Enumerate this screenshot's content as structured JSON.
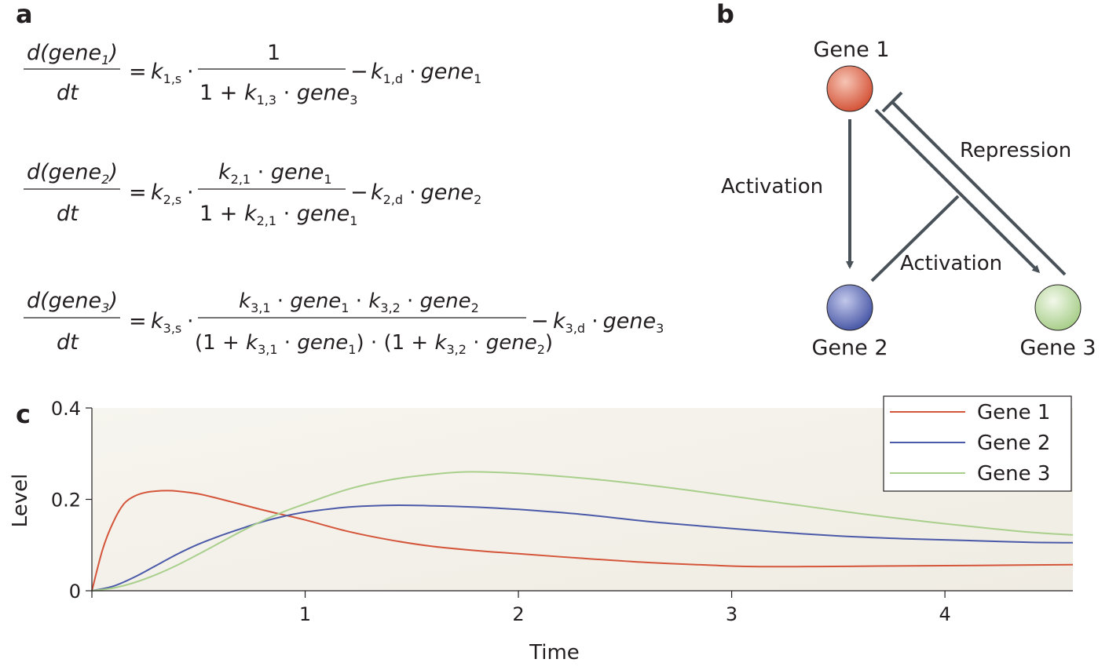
{
  "panels": {
    "a": "a",
    "b": "b",
    "c": "c"
  },
  "equations": [
    {
      "lhs_num": "d(gene",
      "lhs_sub": "1",
      "lhs_close": ")",
      "lhs_den": "dt",
      "eq": "=",
      "k_prod": "k",
      "k_prod_sub": "1,s",
      "dot": "·",
      "frac_num": "1",
      "frac_den_1": "1 + ",
      "frac_den_k": "k",
      "frac_den_k_sub": "1,3",
      "frac_den_dot": " · ",
      "frac_den_g": "gene",
      "frac_den_g_sub": "3",
      "minus": "−",
      "k_deg": "k",
      "k_deg_sub": "1,d",
      "tail_dot": "·",
      "tail_g": "gene",
      "tail_g_sub": "1"
    },
    {
      "lhs_num": "d(gene",
      "lhs_sub": "2",
      "lhs_close": ")",
      "lhs_den": "dt",
      "eq": "=",
      "k_prod": "k",
      "k_prod_sub": "2,s",
      "dot": "·",
      "frac_num_k": "k",
      "frac_num_k_sub": "2,1",
      "frac_num_dot": " · ",
      "frac_num_g": "gene",
      "frac_num_g_sub": "1",
      "frac_den_1": "1 + ",
      "frac_den_k": "k",
      "frac_den_k_sub": "2,1",
      "frac_den_dot": " · ",
      "frac_den_g": "gene",
      "frac_den_g_sub": "1",
      "minus": "−",
      "k_deg": "k",
      "k_deg_sub": "2,d",
      "tail_dot": "·",
      "tail_g": "gene",
      "tail_g_sub": "2"
    },
    {
      "lhs_num": "d(gene",
      "lhs_sub": "3",
      "lhs_close": ")",
      "lhs_den": "dt",
      "eq": "=",
      "k_prod": "k",
      "k_prod_sub": "3,s",
      "dot": "·",
      "num_k1": "k",
      "num_k1_sub": "3,1",
      "num_d1": " · ",
      "num_g1": "gene",
      "num_g1_sub": "1",
      "num_d2": " · ",
      "num_k2": "k",
      "num_k2_sub": "3,2",
      "num_d3": " · ",
      "num_g2": "gene",
      "num_g2_sub": "2",
      "den_o1": "(1 + ",
      "den_k1": "k",
      "den_k1_sub": "3,1",
      "den_d1": " · ",
      "den_g1": "gene",
      "den_g1_sub": "1",
      "den_c1": ")",
      "den_mid": " · ",
      "den_o2": "(1 + ",
      "den_k2": "k",
      "den_k2_sub": "3,2",
      "den_d2": " · ",
      "den_g2": "gene",
      "den_g2_sub": "2",
      "den_c2": ")",
      "minus": "−",
      "k_deg": "k",
      "k_deg_sub": "3,d",
      "tail_dot": "·",
      "tail_g": "gene",
      "tail_g_sub": "3"
    }
  ],
  "network": {
    "nodes": [
      {
        "label": "Gene 1",
        "color": "#d4553a"
      },
      {
        "label": "Gene 2",
        "color": "#4b5aa8"
      },
      {
        "label": "Gene 3",
        "color": "#a9cf8c"
      }
    ],
    "edge_color": "#4a5259",
    "labels": {
      "activation_1": "Activation",
      "activation_2": "Activation",
      "repression": "Repression"
    }
  },
  "chart_data": {
    "type": "line",
    "xlabel": "Time",
    "ylabel": "Level",
    "xlim": [
      0,
      4.6
    ],
    "ylim": [
      0,
      0.4
    ],
    "xticks": [
      1,
      2,
      3,
      4
    ],
    "xtick_labels": [
      "1",
      "2",
      "3",
      "4"
    ],
    "yticks": [
      0,
      0.2,
      0.4
    ],
    "ytick_labels": [
      "0",
      "0.2",
      "0.4"
    ],
    "legend_position": "top-right",
    "grid": false,
    "series": [
      {
        "name": "Gene 1",
        "color": "#d4553a",
        "x": [
          0,
          0.05,
          0.1,
          0.15,
          0.2,
          0.25,
          0.3,
          0.35,
          0.4,
          0.5,
          0.6,
          0.7,
          0.8,
          0.9,
          1.0,
          1.2,
          1.4,
          1.6,
          1.8,
          2.0,
          2.3,
          2.6,
          2.9,
          3.1,
          3.4,
          3.7,
          4.0,
          4.3,
          4.6
        ],
        "y": [
          0,
          0.09,
          0.15,
          0.19,
          0.207,
          0.215,
          0.218,
          0.219,
          0.218,
          0.212,
          0.201,
          0.189,
          0.177,
          0.166,
          0.155,
          0.13,
          0.111,
          0.097,
          0.088,
          0.081,
          0.071,
          0.062,
          0.056,
          0.053,
          0.053,
          0.054,
          0.055,
          0.056,
          0.057
        ]
      },
      {
        "name": "Gene 2",
        "color": "#4b5aa8",
        "x": [
          0,
          0.1,
          0.2,
          0.3,
          0.4,
          0.5,
          0.6,
          0.7,
          0.8,
          0.9,
          1.0,
          1.2,
          1.4,
          1.6,
          1.8,
          2.0,
          2.3,
          2.6,
          2.9,
          3.2,
          3.5,
          3.8,
          4.1,
          4.4,
          4.6
        ],
        "y": [
          0,
          0.01,
          0.03,
          0.055,
          0.08,
          0.102,
          0.12,
          0.136,
          0.151,
          0.163,
          0.172,
          0.183,
          0.187,
          0.186,
          0.183,
          0.178,
          0.167,
          0.152,
          0.14,
          0.129,
          0.12,
          0.114,
          0.11,
          0.106,
          0.105
        ]
      },
      {
        "name": "Gene 3",
        "color": "#a9cf8c",
        "x": [
          0,
          0.1,
          0.2,
          0.3,
          0.4,
          0.5,
          0.6,
          0.7,
          0.8,
          0.9,
          1.0,
          1.2,
          1.4,
          1.6,
          1.75,
          1.9,
          2.1,
          2.4,
          2.7,
          3.0,
          3.3,
          3.6,
          3.9,
          4.2,
          4.4,
          4.6
        ],
        "y": [
          0,
          0.006,
          0.018,
          0.035,
          0.056,
          0.08,
          0.105,
          0.13,
          0.153,
          0.173,
          0.19,
          0.222,
          0.243,
          0.255,
          0.26,
          0.259,
          0.254,
          0.242,
          0.226,
          0.207,
          0.188,
          0.169,
          0.152,
          0.137,
          0.128,
          0.122
        ]
      }
    ]
  }
}
